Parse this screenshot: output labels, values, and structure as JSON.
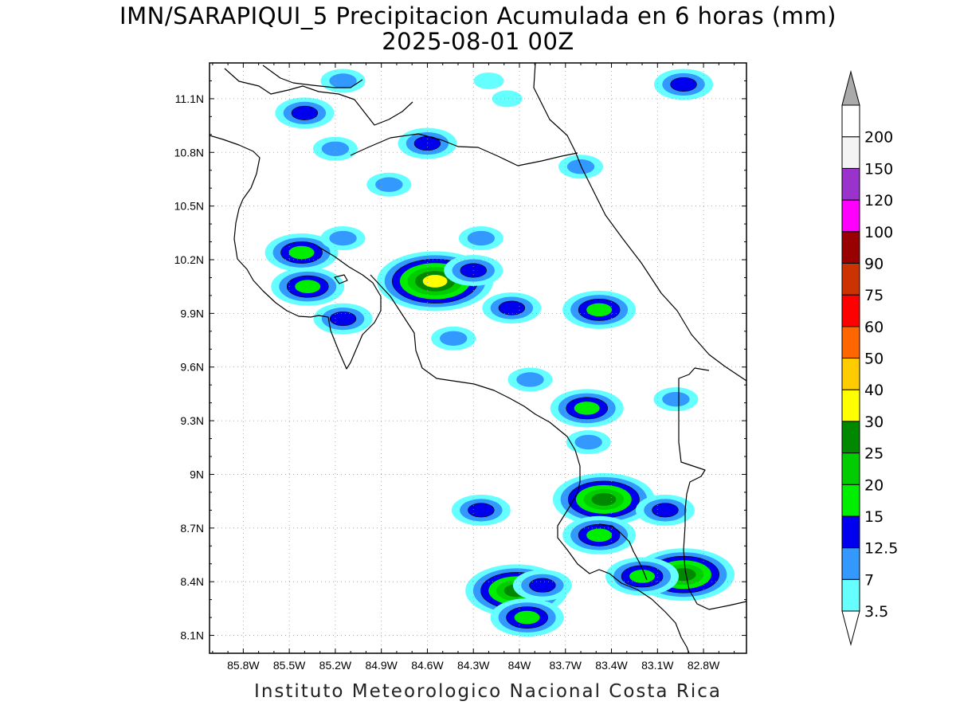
{
  "title": {
    "line1": "IMN/SARAPIQUI_5 Precipitacion Acumulada en 6 horas (mm)",
    "line2": "2025-08-01 00Z"
  },
  "credit": "Instituto Meteorologico Nacional Costa Rica",
  "map": {
    "lon_range": [
      -86.02,
      -82.52
    ],
    "lat_range": [
      8.0,
      11.3
    ],
    "lon_ticks": [
      {
        "value": -85.8,
        "label": "85.8W"
      },
      {
        "value": -85.5,
        "label": "85.5W"
      },
      {
        "value": -85.2,
        "label": "85.2W"
      },
      {
        "value": -84.9,
        "label": "84.9W"
      },
      {
        "value": -84.6,
        "label": "84.6W"
      },
      {
        "value": -84.3,
        "label": "84.3W"
      },
      {
        "value": -84.0,
        "label": "84W"
      },
      {
        "value": -83.7,
        "label": "83.7W"
      },
      {
        "value": -83.4,
        "label": "83.4W"
      },
      {
        "value": -83.1,
        "label": "83.1W"
      },
      {
        "value": -82.8,
        "label": "82.8W"
      }
    ],
    "lat_ticks": [
      {
        "value": 8.1,
        "label": "8.1N"
      },
      {
        "value": 8.4,
        "label": "8.4N"
      },
      {
        "value": 8.7,
        "label": "8.7N"
      },
      {
        "value": 9.0,
        "label": "9N"
      },
      {
        "value": 9.3,
        "label": "9.3N"
      },
      {
        "value": 9.6,
        "label": "9.6N"
      },
      {
        "value": 9.9,
        "label": "9.9N"
      },
      {
        "value": 10.2,
        "label": "10.2N"
      },
      {
        "value": 10.5,
        "label": "10.5N"
      },
      {
        "value": 10.8,
        "label": "10.8N"
      },
      {
        "value": 11.1,
        "label": "11.1N"
      }
    ],
    "grid": true,
    "precip_cells": [
      {
        "lon": -84.55,
        "lat": 10.08,
        "level": 7
      },
      {
        "lon": -84.3,
        "lat": 10.14,
        "level": 3
      },
      {
        "lon": -85.4,
        "lat": 11.02,
        "level": 3
      },
      {
        "lon": -84.6,
        "lat": 10.85,
        "level": 3
      },
      {
        "lon": -85.42,
        "lat": 10.24,
        "level": 4
      },
      {
        "lon": -85.38,
        "lat": 10.05,
        "level": 4
      },
      {
        "lon": -83.48,
        "lat": 9.92,
        "level": 4
      },
      {
        "lon": -83.56,
        "lat": 9.37,
        "level": 4
      },
      {
        "lon": -83.45,
        "lat": 8.86,
        "level": 6
      },
      {
        "lon": -84.02,
        "lat": 8.35,
        "level": 6
      },
      {
        "lon": -83.95,
        "lat": 8.2,
        "level": 4
      },
      {
        "lon": -82.93,
        "lat": 8.44,
        "level": 6
      },
      {
        "lon": -84.25,
        "lat": 8.8,
        "level": 3
      },
      {
        "lon": -83.48,
        "lat": 8.66,
        "level": 4
      },
      {
        "lon": -83.05,
        "lat": 8.8,
        "level": 3
      },
      {
        "lon": -82.93,
        "lat": 11.18,
        "level": 3
      },
      {
        "lon": -83.6,
        "lat": 10.72,
        "level": 2
      },
      {
        "lon": -84.85,
        "lat": 10.62,
        "level": 2
      },
      {
        "lon": -85.15,
        "lat": 9.87,
        "level": 3
      },
      {
        "lon": -84.43,
        "lat": 9.76,
        "level": 2
      },
      {
        "lon": -84.05,
        "lat": 9.93,
        "level": 3
      },
      {
        "lon": -83.93,
        "lat": 9.53,
        "level": 2
      },
      {
        "lon": -83.55,
        "lat": 9.18,
        "level": 2
      },
      {
        "lon": -84.25,
        "lat": 10.32,
        "level": 2
      },
      {
        "lon": -85.15,
        "lat": 10.32,
        "level": 2
      },
      {
        "lon": -83.85,
        "lat": 8.38,
        "level": 3
      },
      {
        "lon": -83.2,
        "lat": 8.43,
        "level": 4
      },
      {
        "lon": -84.2,
        "lat": 11.2,
        "level": 1
      },
      {
        "lon": -84.08,
        "lat": 11.1,
        "level": 1
      },
      {
        "lon": -85.15,
        "lat": 11.2,
        "level": 2
      },
      {
        "lon": -85.2,
        "lat": 10.82,
        "level": 2
      },
      {
        "lon": -82.98,
        "lat": 9.42,
        "level": 2
      }
    ]
  },
  "colorbar": {
    "labels": [
      "3.5",
      "7",
      "12.5",
      "15",
      "20",
      "25",
      "30",
      "40",
      "50",
      "60",
      "75",
      "90",
      "100",
      "120",
      "150",
      "200"
    ],
    "colors": [
      "#66ffff",
      "#3399ff",
      "#0000ee",
      "#00ee00",
      "#00cc00",
      "#008800",
      "#ffff00",
      "#ffcc00",
      "#ff6600",
      "#ff0000",
      "#cc3300",
      "#990000",
      "#ff00ff",
      "#9933cc",
      "#f4f4f4",
      "#ffffff"
    ],
    "top_triangle_color": "#aaaaaa",
    "bottom_triangle_color": "#ffffff"
  }
}
